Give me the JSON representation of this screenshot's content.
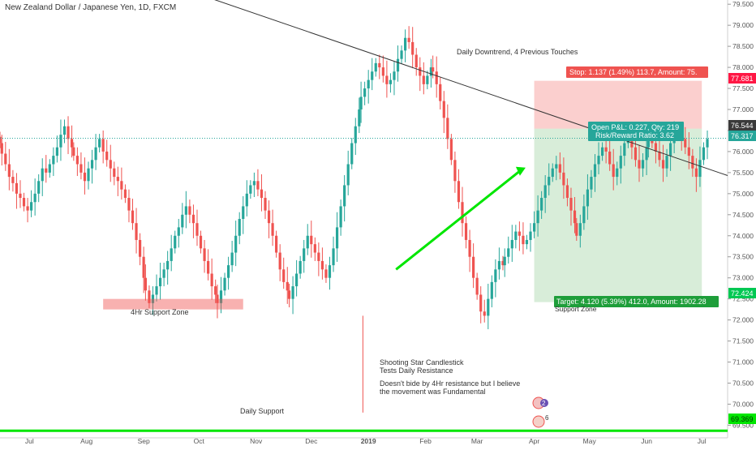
{
  "header": {
    "title": "New Zealand Dollar / Japanese Yen, 1D, FXCM"
  },
  "colors": {
    "bull": "#26a69a",
    "bear": "#ef5350",
    "accent_green": "#00e600",
    "price_tag": "#333333",
    "stop_tag": "#ff1744",
    "target_tag": "#00c853"
  },
  "annotations": {
    "support_zone": "4Hr Support Zone",
    "downtrend": "Daily Downtrend, 4 Previous Touches",
    "shooting_star_line1": "Shooting Star Candlestick",
    "shooting_star_line2": "Tests Daily Resistance",
    "shooting_star_line3": "Doesn't bide by 4Hr resistance but I believe",
    "shooting_star_line4": "the movement was Fundamental",
    "daily_support": "Daily Support",
    "target_overlay": "Support Zone"
  },
  "position": {
    "stop_text": "Stop: 1.137 (1.49%) 113.7, Amount: 75.",
    "pnl_text": "Open P&L: 0.227, Qty: 219",
    "rr_text": "Risk/Reward Ratio: 3.62",
    "target_text": "Target: 4.120 (5.39%) 412.0, Amount: 1902.28",
    "entry": 76.544,
    "stop": 77.681,
    "target": 72.424,
    "start": "2019-04-01",
    "end": "2019-07-01"
  },
  "price_tags": {
    "stop": "77.681",
    "open": "76.544",
    "current": "76.317",
    "target": "72.424",
    "support": "69.369"
  },
  "event_markers": {
    "count_a": "2",
    "count_b": "6"
  },
  "chart_data": {
    "type": "candlestick",
    "title": "New Zealand Dollar / Japanese Yen, 1D, FXCM",
    "y_axis_position": "right",
    "ylim": [
      69.2,
      79.6
    ],
    "y_ticks": [
      "69.500",
      "70.000",
      "70.500",
      "71.000",
      "71.500",
      "72.000",
      "72.500",
      "73.000",
      "73.500",
      "74.000",
      "74.500",
      "75.000",
      "75.500",
      "76.000",
      "76.500",
      "77.000",
      "77.500",
      "78.000",
      "78.500",
      "79.000",
      "79.500"
    ],
    "x_range": [
      "2018-06-15",
      "2019-07-15"
    ],
    "x_ticks": [
      {
        "label": "Jul",
        "date": "2018-07-01"
      },
      {
        "label": "Aug",
        "date": "2018-08-01"
      },
      {
        "label": "Sep",
        "date": "2018-09-01"
      },
      {
        "label": "Oct",
        "date": "2018-10-01"
      },
      {
        "label": "Nov",
        "date": "2018-11-01"
      },
      {
        "label": "Dec",
        "date": "2018-12-01"
      },
      {
        "label": "2019",
        "date": "2019-01-01"
      },
      {
        "label": "Feb",
        "date": "2019-02-01"
      },
      {
        "label": "Mar",
        "date": "2019-03-01"
      },
      {
        "label": "Apr",
        "date": "2019-04-01"
      },
      {
        "label": "May",
        "date": "2019-05-01"
      },
      {
        "label": "Jun",
        "date": "2019-06-01"
      },
      {
        "label": "Jul",
        "date": "2019-07-01"
      }
    ],
    "start_date": "2018-06-15",
    "bars": 200,
    "closes": [
      76.2,
      75.95,
      75.7,
      75.4,
      75.25,
      75.0,
      74.9,
      74.7,
      74.6,
      74.8,
      75.0,
      75.3,
      75.6,
      75.5,
      75.7,
      75.9,
      76.1,
      76.4,
      76.6,
      76.3,
      76.1,
      75.9,
      75.7,
      75.5,
      75.3,
      75.6,
      75.8,
      76.1,
      76.3,
      76.0,
      75.8,
      75.6,
      75.4,
      75.3,
      75.1,
      74.9,
      74.6,
      74.3,
      73.9,
      73.5,
      73.0,
      72.7,
      72.4,
      72.6,
      72.8,
      73.0,
      73.2,
      73.4,
      73.7,
      74.0,
      74.2,
      74.5,
      74.7,
      74.5,
      74.3,
      74.0,
      73.7,
      73.4,
      73.1,
      72.8,
      72.6,
      72.4,
      72.7,
      73.0,
      73.3,
      73.6,
      74.0,
      74.4,
      74.7,
      75.0,
      75.2,
      75.3,
      75.1,
      74.9,
      74.6,
      74.3,
      74.0,
      73.6,
      73.2,
      72.9,
      72.7,
      72.5,
      72.8,
      73.1,
      73.4,
      73.7,
      74.0,
      73.8,
      73.6,
      73.4,
      73.2,
      73.0,
      73.3,
      73.7,
      74.2,
      74.7,
      75.2,
      75.7,
      76.2,
      76.6,
      77.0,
      77.3,
      77.5,
      77.7,
      77.9,
      78.1,
      78.0,
      77.8,
      77.6,
      77.7,
      77.9,
      78.2,
      78.4,
      78.7,
      78.6,
      78.3,
      78.0,
      77.8,
      77.6,
      77.8,
      78.0,
      77.9,
      77.6,
      77.2,
      76.8,
      76.3,
      75.8,
      75.3,
      74.8,
      74.3,
      73.9,
      73.5,
      73.0,
      72.6,
      72.2,
      72.1,
      72.5,
      72.9,
      73.2,
      73.4,
      73.3,
      73.5,
      73.7,
      73.9,
      74.1,
      74.0,
      73.8,
      73.9,
      74.1,
      74.3,
      74.6,
      74.9,
      75.2,
      75.4,
      75.6,
      75.7,
      75.5,
      75.2,
      74.9,
      74.6,
      74.3,
      74.0,
      74.3,
      74.7,
      75.1,
      75.4,
      75.7,
      75.9,
      76.1,
      76.0,
      75.7,
      75.4,
      75.6,
      75.9,
      76.2,
      76.3,
      76.1,
      75.8,
      75.6,
      75.8,
      76.1,
      76.3,
      76.2,
      76.0,
      75.8,
      75.6,
      75.9,
      76.2,
      76.4,
      76.5,
      76.3,
      76.1,
      75.9,
      75.6,
      75.4,
      75.8,
      76.1,
      76.3
    ],
    "series": [
      {
        "name": "Daily Downtrend",
        "type": "trendline",
        "points": [
          [
            "2018-09-20",
            79.9
          ],
          [
            "2019-04-08",
            76.9
          ]
        ]
      },
      {
        "name": "Uptrend",
        "type": "trendline",
        "points": [
          [
            "2019-01-16",
            73.2
          ],
          [
            "2019-03-26",
            75.6
          ]
        ]
      },
      {
        "name": "Daily Support",
        "type": "hline",
        "value": 69.369
      },
      {
        "name": "4Hr Support Zone",
        "type": "zone",
        "x": [
          "2018-08-10",
          "2018-10-25"
        ],
        "y": [
          72.25,
          72.5
        ]
      }
    ]
  }
}
